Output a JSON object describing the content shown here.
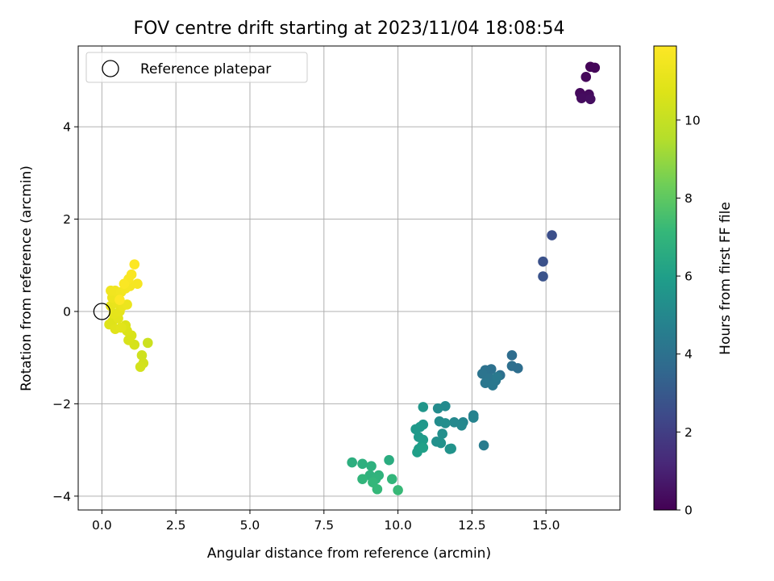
{
  "chart_data": {
    "type": "scatter",
    "title": "FOV centre drift starting at 2023/11/04 18:08:54",
    "xlabel": "Angular distance from reference (arcmin)",
    "ylabel": "Rotation from reference (arcmin)",
    "xlim": [
      -0.8,
      17.5
    ],
    "ylim": [
      -4.3,
      5.75
    ],
    "xticks": [
      0.0,
      2.5,
      5.0,
      7.5,
      10.0,
      12.5,
      15.0
    ],
    "xtick_labels": [
      "0.0",
      "2.5",
      "5.0",
      "7.5",
      "10.0",
      "12.5",
      "15.0"
    ],
    "yticks": [
      -4,
      -2,
      0,
      2,
      4
    ],
    "ytick_labels": [
      "−4",
      "−2",
      "0",
      "2",
      "4"
    ],
    "grid": true,
    "legend": {
      "position": "top-left",
      "entries": [
        "Reference platepar"
      ]
    },
    "reference_point": {
      "x": 0.0,
      "y": 0.0
    },
    "colorbar": {
      "label": "Hours from first FF file",
      "range": [
        0,
        11.9
      ],
      "ticks": [
        0,
        2,
        4,
        6,
        8,
        10
      ],
      "tick_labels": [
        "0",
        "2",
        "4",
        "6",
        "8",
        "10"
      ],
      "colormap": "viridis"
    },
    "points": [
      {
        "x": 16.5,
        "y": 5.3,
        "c": 0.1
      },
      {
        "x": 16.65,
        "y": 5.28,
        "c": 0.15
      },
      {
        "x": 16.35,
        "y": 5.08,
        "c": 0.2
      },
      {
        "x": 16.15,
        "y": 4.73,
        "c": 0.25
      },
      {
        "x": 16.45,
        "y": 4.7,
        "c": 0.3
      },
      {
        "x": 16.2,
        "y": 4.62,
        "c": 0.35
      },
      {
        "x": 16.5,
        "y": 4.6,
        "c": 0.4
      },
      {
        "x": 15.2,
        "y": 1.65,
        "c": 2.6
      },
      {
        "x": 14.9,
        "y": 1.08,
        "c": 2.7
      },
      {
        "x": 14.9,
        "y": 0.76,
        "c": 2.75
      },
      {
        "x": 13.85,
        "y": -0.95,
        "c": 3.8
      },
      {
        "x": 13.85,
        "y": -1.18,
        "c": 3.9
      },
      {
        "x": 14.05,
        "y": -1.23,
        "c": 3.85
      },
      {
        "x": 13.45,
        "y": -1.38,
        "c": 3.95
      },
      {
        "x": 13.15,
        "y": -1.25,
        "c": 4.0
      },
      {
        "x": 12.95,
        "y": -1.27,
        "c": 4.05
      },
      {
        "x": 12.85,
        "y": -1.35,
        "c": 4.1
      },
      {
        "x": 13.1,
        "y": -1.45,
        "c": 4.15
      },
      {
        "x": 13.3,
        "y": -1.5,
        "c": 4.2
      },
      {
        "x": 12.95,
        "y": -1.55,
        "c": 4.25
      },
      {
        "x": 13.2,
        "y": -1.6,
        "c": 4.3
      },
      {
        "x": 13.35,
        "y": -1.42,
        "c": 4.35
      },
      {
        "x": 12.9,
        "y": -2.9,
        "c": 4.5
      },
      {
        "x": 12.55,
        "y": -2.25,
        "c": 4.7
      },
      {
        "x": 12.55,
        "y": -2.3,
        "c": 4.8
      },
      {
        "x": 12.2,
        "y": -2.4,
        "c": 4.9
      },
      {
        "x": 12.15,
        "y": -2.47,
        "c": 5.0
      },
      {
        "x": 11.9,
        "y": -2.4,
        "c": 5.0
      },
      {
        "x": 11.6,
        "y": -2.05,
        "c": 5.1
      },
      {
        "x": 11.35,
        "y": -2.1,
        "c": 5.15
      },
      {
        "x": 11.4,
        "y": -2.38,
        "c": 5.2
      },
      {
        "x": 11.6,
        "y": -2.42,
        "c": 5.25
      },
      {
        "x": 11.5,
        "y": -2.65,
        "c": 5.3
      },
      {
        "x": 11.3,
        "y": -2.82,
        "c": 5.35
      },
      {
        "x": 11.45,
        "y": -2.85,
        "c": 5.4
      },
      {
        "x": 11.75,
        "y": -2.98,
        "c": 5.45
      },
      {
        "x": 11.8,
        "y": -2.97,
        "c": 5.5
      },
      {
        "x": 10.85,
        "y": -2.07,
        "c": 5.6
      },
      {
        "x": 10.85,
        "y": -2.45,
        "c": 5.65
      },
      {
        "x": 10.75,
        "y": -2.5,
        "c": 5.7
      },
      {
        "x": 10.6,
        "y": -2.55,
        "c": 5.75
      },
      {
        "x": 10.7,
        "y": -2.72,
        "c": 5.8
      },
      {
        "x": 10.85,
        "y": -2.78,
        "c": 5.85
      },
      {
        "x": 10.8,
        "y": -2.92,
        "c": 5.9
      },
      {
        "x": 10.7,
        "y": -2.98,
        "c": 5.95
      },
      {
        "x": 10.65,
        "y": -3.05,
        "c": 6.0
      },
      {
        "x": 10.85,
        "y": -2.95,
        "c": 6.05
      },
      {
        "x": 9.7,
        "y": -3.22,
        "c": 6.6
      },
      {
        "x": 8.45,
        "y": -3.27,
        "c": 6.7
      },
      {
        "x": 8.8,
        "y": -3.3,
        "c": 6.75
      },
      {
        "x": 9.1,
        "y": -3.35,
        "c": 6.8
      },
      {
        "x": 9.05,
        "y": -3.55,
        "c": 6.85
      },
      {
        "x": 9.35,
        "y": -3.55,
        "c": 6.9
      },
      {
        "x": 9.25,
        "y": -3.63,
        "c": 6.95
      },
      {
        "x": 8.8,
        "y": -3.63,
        "c": 7.0
      },
      {
        "x": 9.8,
        "y": -3.63,
        "c": 7.05
      },
      {
        "x": 9.15,
        "y": -3.7,
        "c": 7.1
      },
      {
        "x": 9.3,
        "y": -3.85,
        "c": 7.15
      },
      {
        "x": 10.0,
        "y": -3.87,
        "c": 7.2
      },
      {
        "x": 1.55,
        "y": -0.68,
        "c": 10.2
      },
      {
        "x": 1.35,
        "y": -0.95,
        "c": 10.3
      },
      {
        "x": 1.4,
        "y": -1.12,
        "c": 10.35
      },
      {
        "x": 1.3,
        "y": -1.2,
        "c": 10.4
      },
      {
        "x": 1.1,
        "y": -0.72,
        "c": 10.5
      },
      {
        "x": 0.9,
        "y": -0.62,
        "c": 10.55
      },
      {
        "x": 1.0,
        "y": -0.52,
        "c": 10.6
      },
      {
        "x": 0.85,
        "y": -0.42,
        "c": 10.65
      },
      {
        "x": 0.8,
        "y": -0.3,
        "c": 10.7
      },
      {
        "x": 0.35,
        "y": -0.22,
        "c": 10.75
      },
      {
        "x": 0.25,
        "y": -0.28,
        "c": 10.8
      },
      {
        "x": 0.45,
        "y": -0.38,
        "c": 10.85
      },
      {
        "x": 0.65,
        "y": -0.35,
        "c": 10.9
      },
      {
        "x": 0.55,
        "y": -0.15,
        "c": 10.95
      },
      {
        "x": 0.4,
        "y": -0.05,
        "c": 11.0
      },
      {
        "x": 0.6,
        "y": 0.0,
        "c": 11.05
      },
      {
        "x": 0.3,
        "y": 0.12,
        "c": 11.1
      },
      {
        "x": 0.5,
        "y": 0.18,
        "c": 11.15
      },
      {
        "x": 0.7,
        "y": 0.12,
        "c": 11.2
      },
      {
        "x": 0.85,
        "y": 0.15,
        "c": 11.25
      },
      {
        "x": 0.35,
        "y": 0.3,
        "c": 11.3
      },
      {
        "x": 0.55,
        "y": 0.35,
        "c": 11.35
      },
      {
        "x": 0.3,
        "y": 0.45,
        "c": 11.4
      },
      {
        "x": 0.45,
        "y": 0.45,
        "c": 11.45
      },
      {
        "x": 0.65,
        "y": 0.42,
        "c": 11.5
      },
      {
        "x": 0.8,
        "y": 0.5,
        "c": 11.55
      },
      {
        "x": 0.95,
        "y": 0.55,
        "c": 11.6
      },
      {
        "x": 1.2,
        "y": 0.6,
        "c": 11.65
      },
      {
        "x": 0.9,
        "y": 0.7,
        "c": 11.7
      },
      {
        "x": 1.0,
        "y": 0.8,
        "c": 11.75
      },
      {
        "x": 0.75,
        "y": 0.6,
        "c": 11.8
      },
      {
        "x": 1.1,
        "y": 1.02,
        "c": 11.85
      },
      {
        "x": 0.6,
        "y": 0.25,
        "c": 11.9
      }
    ]
  }
}
